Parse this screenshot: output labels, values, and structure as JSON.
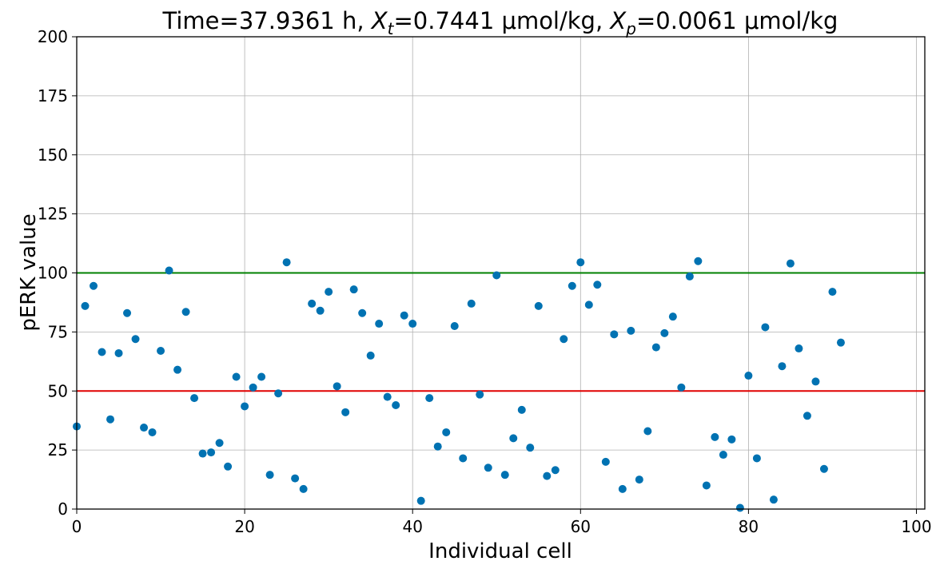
{
  "chart_data": {
    "type": "scatter",
    "title": "Time=37.9361 h, X_t=0.7441 μmol/kg, X_p=0.0061 μmol/kg",
    "title_parts": {
      "time": "Time=37.9361 h, ",
      "xt_symbol": "X",
      "xt_sub": "t",
      "xt_value": "=0.7441 μmol/kg, ",
      "xp_symbol": "X",
      "xp_sub": "p",
      "xp_value": "=0.0061 μmol/kg"
    },
    "xlabel": "Individual cell",
    "ylabel": "pERK value",
    "xlim": [
      0,
      101
    ],
    "ylim": [
      0,
      200
    ],
    "xticks": [
      0,
      20,
      40,
      60,
      80,
      100
    ],
    "yticks": [
      0,
      25,
      50,
      75,
      100,
      125,
      150,
      175,
      200
    ],
    "grid": true,
    "marker_color": "#0072b2",
    "reference_lines": [
      {
        "y": 100,
        "color": "#008000"
      },
      {
        "y": 50,
        "color": "#e00000"
      }
    ],
    "x": [
      0,
      1,
      2,
      3,
      4,
      5,
      6,
      7,
      8,
      9,
      10,
      11,
      12,
      13,
      14,
      15,
      16,
      17,
      18,
      19,
      20,
      21,
      22,
      23,
      24,
      25,
      26,
      27,
      28,
      29,
      30,
      31,
      32,
      33,
      34,
      35,
      36,
      37,
      38,
      39,
      40,
      41,
      42,
      43,
      44,
      45,
      46,
      47,
      48,
      49,
      50,
      51,
      52,
      53,
      54,
      55,
      56,
      57,
      58,
      59,
      60,
      61,
      62,
      63,
      64,
      65,
      66,
      67,
      68,
      69,
      70,
      71,
      72,
      73,
      74,
      75,
      76,
      77,
      78,
      79,
      80,
      81,
      82,
      83,
      84,
      85,
      86,
      87,
      88,
      89,
      90,
      91
    ],
    "y": [
      35,
      86,
      94.5,
      66.5,
      38,
      66,
      83,
      72,
      34.5,
      32.5,
      67,
      101,
      59,
      83.5,
      47,
      23.5,
      24,
      28,
      18,
      56,
      43.5,
      51.5,
      56,
      14.5,
      49,
      104.5,
      13,
      8.5,
      87,
      84,
      92,
      52,
      41,
      93,
      83,
      65,
      78.5,
      47.5,
      44,
      82,
      78.5,
      3.5,
      47,
      26.5,
      32.5,
      77.5,
      21.5,
      87,
      48.5,
      17.5,
      99,
      14.5,
      30,
      42,
      26,
      86,
      14,
      16.5,
      72,
      94.5,
      104.5,
      86.5,
      95,
      20,
      74,
      8.5,
      75.5,
      12.5,
      33,
      68.5,
      74.5,
      81.5,
      51.5,
      98.5,
      105,
      10,
      30.5,
      23,
      29.5,
      0.5,
      56.5,
      21.5,
      77,
      4,
      60.5,
      104,
      68,
      39.5,
      54,
      17,
      92,
      70.5
    ]
  }
}
